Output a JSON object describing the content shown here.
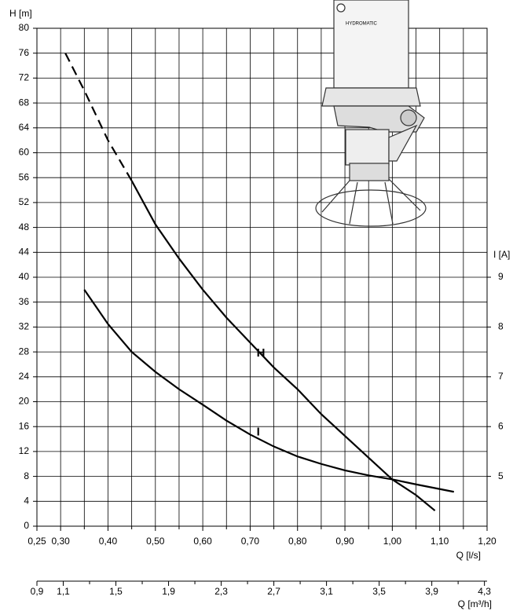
{
  "chart_data": {
    "type": "line",
    "y_label": "H [m]",
    "y2_label": "I [A]",
    "x_label": "Q [l/s]",
    "x2_label": "Q [m³/h]",
    "xlim": [
      0.25,
      1.2
    ],
    "xticks": [
      {
        "value": 0.25,
        "label": "0,25"
      },
      {
        "value": 0.3,
        "label": "0,30"
      },
      {
        "value": 0.4,
        "label": "0,40"
      },
      {
        "value": 0.5,
        "label": "0,50"
      },
      {
        "value": 0.6,
        "label": "0,60"
      },
      {
        "value": 0.7,
        "label": "0,70"
      },
      {
        "value": 0.8,
        "label": "0,80"
      },
      {
        "value": 0.9,
        "label": "0,90"
      },
      {
        "value": 1.0,
        "label": "1,00"
      },
      {
        "value": 1.1,
        "label": "1,10"
      },
      {
        "value": 1.2,
        "label": "1,20"
      }
    ],
    "xminor": [
      0.35,
      0.45,
      0.55,
      0.65,
      0.75,
      0.85,
      0.95,
      1.05,
      1.15
    ],
    "x2lim": [
      0.9,
      4.32
    ],
    "x2ticks": [
      {
        "value": 0.9,
        "label": "0,9"
      },
      {
        "value": 1.1,
        "label": "1,1"
      },
      {
        "value": 1.5,
        "label": "1,5"
      },
      {
        "value": 1.9,
        "label": "1,9"
      },
      {
        "value": 2.3,
        "label": "2,3"
      },
      {
        "value": 2.7,
        "label": "2,7"
      },
      {
        "value": 3.1,
        "label": "3,1"
      },
      {
        "value": 3.5,
        "label": "3,5"
      },
      {
        "value": 3.9,
        "label": "3,9"
      },
      {
        "value": 4.3,
        "label": "4,3"
      }
    ],
    "x2minor": [
      1.3,
      1.7,
      2.1,
      2.5,
      2.9,
      3.3,
      3.7,
      4.1
    ],
    "ylim": [
      0,
      80
    ],
    "yticks": [
      0,
      4,
      8,
      12,
      16,
      20,
      24,
      28,
      32,
      36,
      40,
      44,
      48,
      52,
      56,
      60,
      64,
      68,
      72,
      76,
      80
    ],
    "y2lim": [
      4,
      14
    ],
    "y2ticks": [
      5,
      6,
      7,
      8,
      9
    ],
    "grid": true,
    "series": [
      {
        "name": "H",
        "color": "#000000",
        "dashed_below": 0.45,
        "x": [
          0.31,
          0.35,
          0.4,
          0.45,
          0.5,
          0.55,
          0.6,
          0.65,
          0.7,
          0.75,
          0.8,
          0.85,
          0.9,
          0.95,
          1.0,
          1.05,
          1.09
        ],
        "values": [
          76,
          70,
          62,
          55.5,
          48.5,
          43,
          38,
          33.5,
          29.5,
          25.5,
          22,
          18,
          14.5,
          11,
          7.5,
          5,
          2.5
        ]
      },
      {
        "name": "I",
        "color": "#000000",
        "axis": "y2",
        "x": [
          0.35,
          0.4,
          0.45,
          0.5,
          0.55,
          0.6,
          0.65,
          0.7,
          0.75,
          0.8,
          0.85,
          0.9,
          0.95,
          1.0,
          1.05,
          1.13
        ],
        "values": [
          8.75,
          8.06,
          7.5,
          7.1,
          6.75,
          6.44,
          6.12,
          5.84,
          5.6,
          5.4,
          5.25,
          5.12,
          5.02,
          4.94,
          4.84,
          4.69
        ]
      }
    ]
  }
}
